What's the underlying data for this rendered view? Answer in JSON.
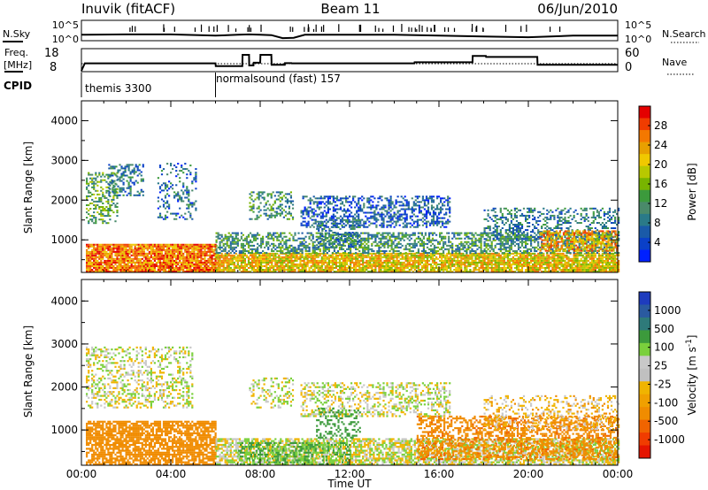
{
  "header": {
    "station": "Inuvik (fitACF)",
    "beam": "Beam 11",
    "date": "06/Jun/2010"
  },
  "noise_panel": {
    "left_label": "N.Sky",
    "right_label": "N.Search",
    "left_ticks": [
      "10^5",
      "10^0"
    ],
    "right_ticks": [
      "10^5",
      "10^0"
    ]
  },
  "freq_panel": {
    "left_label_line1": "Freq.",
    "left_label_line2": "[MHz]",
    "left_ticks": [
      "18",
      "8"
    ],
    "right_label": "Nave",
    "right_ticks": [
      "60",
      "0"
    ]
  },
  "cpid_panel": {
    "label": "CPID",
    "segments": [
      "themis 3300",
      "normalsound (fast) 157"
    ]
  },
  "axes": {
    "xlabel": "Time UT",
    "x_ticks": [
      "00:00",
      "04:00",
      "08:00",
      "12:00",
      "16:00",
      "20:00",
      "00:00"
    ],
    "ylabel": "Slant Range [km]",
    "y_ticks": [
      "4000",
      "3000",
      "2000",
      "1000"
    ]
  },
  "power_colorbar": {
    "label": "Power [dB]",
    "ticks": [
      "28",
      "24",
      "20",
      "16",
      "12",
      "8",
      "4"
    ],
    "colors": [
      "#e40000",
      "#f03c00",
      "#f47800",
      "#e8a000",
      "#f0c800",
      "#b8c800",
      "#78b400",
      "#3c9a3c",
      "#4a8a6a",
      "#2a7a88",
      "#1a5aa8",
      "#0a40c8",
      "#0020ff"
    ]
  },
  "velocity_colorbar": {
    "label": "Velocity [m s^-1]",
    "ticks": [
      "1000",
      "500",
      "100",
      "25",
      "-25",
      "-100",
      "-500",
      "-1000"
    ],
    "colors": [
      "#1e3cbe",
      "#2a5aa0",
      "#2e7a7a",
      "#3c9a3c",
      "#7ad03c",
      "#c8c8c8",
      "#c0c0c0",
      "#f0b400",
      "#f0a000",
      "#f08c00",
      "#f06400",
      "#f03c00",
      "#e41400"
    ]
  },
  "chart_data": {
    "type": "heatmap",
    "x_range_hours": [
      0,
      24
    ],
    "y_range_km": [
      180,
      4500
    ],
    "noise_sky": {
      "x": [
        0,
        0.2,
        2,
        4,
        6,
        7,
        7.5,
        8,
        8.5,
        9,
        9.5,
        10,
        14,
        16,
        18,
        20,
        22,
        24
      ],
      "y": [
        0.3,
        0.3,
        0.32,
        0.32,
        0.25,
        0.3,
        0.32,
        0.3,
        0.28,
        0.1,
        0.12,
        0.3,
        0.3,
        0.25,
        0.2,
        0.15,
        0.25,
        0.25
      ]
    },
    "frequency_mhz": {
      "x": [
        0,
        0.15,
        6,
        6.01,
        7.2,
        7.21,
        7.5,
        7.51,
        7.7,
        7.71,
        8.0,
        8.01,
        8.5,
        8.51,
        9.1,
        9.11,
        9.4,
        9.41,
        14.9,
        14.91,
        17.5,
        17.51,
        18.1,
        18.11,
        20.4,
        20.41,
        24
      ],
      "y": [
        8,
        11.5,
        11.5,
        10.2,
        10.2,
        15.5,
        15.5,
        10.5,
        10.5,
        11.8,
        11.8,
        15.5,
        15.5,
        10.8,
        10.8,
        11.6,
        11.6,
        11.5,
        11.5,
        12.0,
        12.0,
        15.0,
        15.0,
        14.5,
        14.5,
        10.8,
        10.8
      ]
    },
    "nave_reference": 20,
    "cpid": [
      {
        "program": "themis 3300",
        "start_hour": 0,
        "end_hour": 6
      },
      {
        "program": "normalsound (fast) 157",
        "start_hour": 6,
        "end_hour": 24
      }
    ],
    "panels": [
      {
        "parameter": "Power",
        "units": "dB",
        "scale": [
          4,
          28
        ],
        "scatter_regions": [
          {
            "t": [
              0.2,
              6.0
            ],
            "r": [
              180,
              900
            ],
            "value": 24,
            "density": 0.9
          },
          {
            "t": [
              6.0,
              24.0
            ],
            "r": [
              180,
              650
            ],
            "value": 20,
            "density": 0.85
          },
          {
            "t": [
              6.0,
              24.0
            ],
            "r": [
              650,
              1150
            ],
            "value": 12,
            "density": 0.55
          },
          {
            "t": [
              0.2,
              1.6
            ],
            "r": [
              1400,
              2700
            ],
            "value": 14,
            "density": 0.4
          },
          {
            "t": [
              1.2,
              2.8
            ],
            "r": [
              2100,
              2900
            ],
            "value": 10,
            "density": 0.4
          },
          {
            "t": [
              3.4,
              5.1
            ],
            "r": [
              1500,
              2900
            ],
            "value": 9,
            "density": 0.25
          },
          {
            "t": [
              7.5,
              9.5
            ],
            "r": [
              1500,
              2200
            ],
            "value": 12,
            "density": 0.35
          },
          {
            "t": [
              9.8,
              16.5
            ],
            "r": [
              1300,
              2100
            ],
            "value": 8,
            "density": 0.45
          },
          {
            "t": [
              10.5,
              12.5
            ],
            "r": [
              800,
              1500
            ],
            "value": 10,
            "density": 0.3
          },
          {
            "t": [
              18.0,
              24.0
            ],
            "r": [
              1000,
              1800
            ],
            "value": 10,
            "density": 0.35
          },
          {
            "t": [
              20.5,
              24.0
            ],
            "r": [
              700,
              1200
            ],
            "value": 22,
            "density": 0.55
          }
        ]
      },
      {
        "parameter": "Velocity",
        "units": "m/s",
        "scale": [
          -1000,
          1000
        ],
        "scatter_regions": [
          {
            "t": [
              0.2,
              6.0
            ],
            "r": [
              180,
              1200
            ],
            "value": -180,
            "density": 0.75
          },
          {
            "t": [
              6.0,
              24.0
            ],
            "r": [
              180,
              800
            ],
            "value": 0,
            "density": 0.7
          },
          {
            "t": [
              15.0,
              24.0
            ],
            "r": [
              300,
              1300
            ],
            "value": -250,
            "density": 0.5
          },
          {
            "t": [
              0.2,
              5.0
            ],
            "r": [
              1500,
              2900
            ],
            "value": 0,
            "density": 0.35
          },
          {
            "t": [
              7.5,
              9.5
            ],
            "r": [
              1500,
              2200
            ],
            "value": 10,
            "density": 0.3
          },
          {
            "t": [
              9.8,
              16.5
            ],
            "r": [
              1300,
              2100
            ],
            "value": 5,
            "density": 0.4
          },
          {
            "t": [
              10.5,
              12.5
            ],
            "r": [
              800,
              1500
            ],
            "value": 200,
            "density": 0.25
          },
          {
            "t": [
              7.0,
              12.0
            ],
            "r": [
              180,
              700
            ],
            "value": 120,
            "density": 0.4
          },
          {
            "t": [
              18.0,
              24.0
            ],
            "r": [
              1000,
              1800
            ],
            "value": -60,
            "density": 0.3
          }
        ]
      }
    ]
  }
}
